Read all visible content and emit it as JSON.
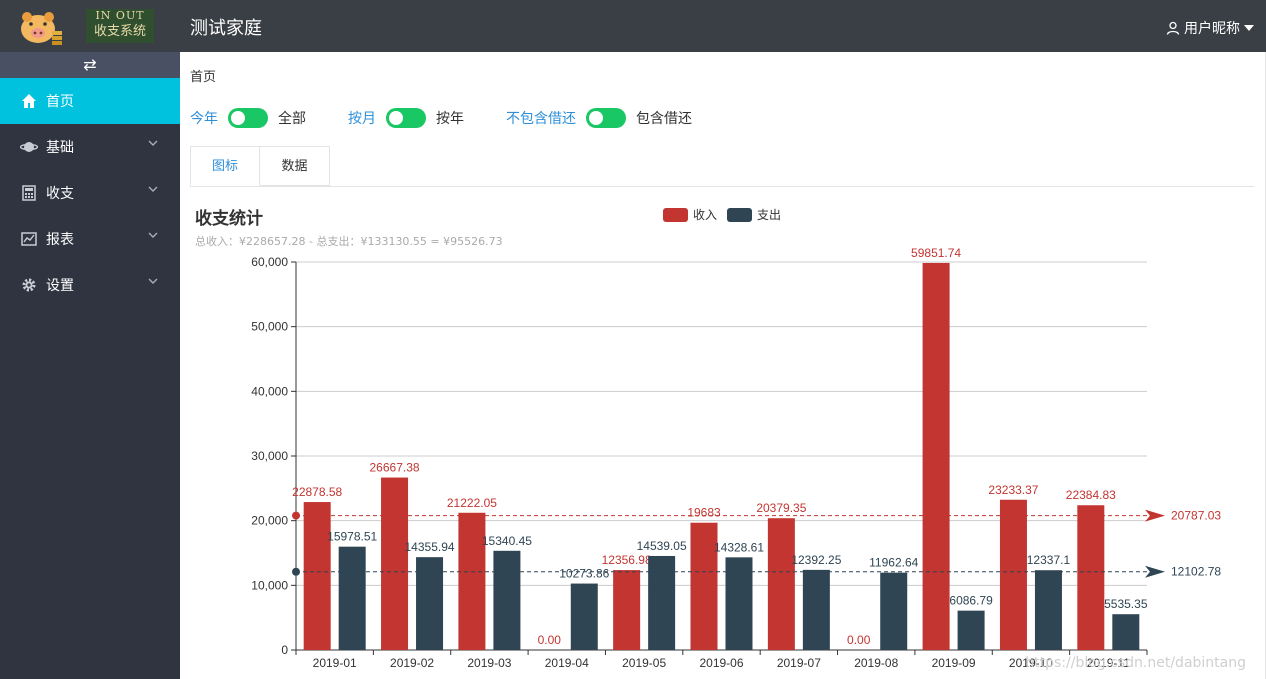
{
  "logo": {
    "line1": "IN OUT",
    "line2": "收支系统"
  },
  "sidebar": {
    "toggle_icon": "⇄",
    "items": [
      {
        "label": "首页",
        "icon": "home-icon"
      },
      {
        "label": "基础",
        "icon": "planet-icon"
      },
      {
        "label": "收支",
        "icon": "calculator-icon"
      },
      {
        "label": "报表",
        "icon": "report-icon"
      },
      {
        "label": "设置",
        "icon": "gear-icon"
      }
    ]
  },
  "header": {
    "title": "测试家庭",
    "user": "用户昵称"
  },
  "breadcrumb": "首页",
  "switches": [
    {
      "left": "今年",
      "right": "全部"
    },
    {
      "left": "按月",
      "right": "按年"
    },
    {
      "left": "不包含借还",
      "right": "包含借还"
    }
  ],
  "tabs": [
    "图标",
    "数据"
  ],
  "chart_data": {
    "type": "bar",
    "title": "收支统计",
    "subtitle": "总收入：¥228657.28 - 总支出：¥133130.55 = ¥95526.73",
    "categories": [
      "2019-01",
      "2019-02",
      "2019-03",
      "2019-04",
      "2019-05",
      "2019-06",
      "2019-07",
      "2019-08",
      "2019-09",
      "2019-10",
      "2019-11"
    ],
    "series": [
      {
        "name": "收入",
        "color": "#c23531",
        "values": [
          22878.58,
          26667.38,
          21222.05,
          0,
          12356.98,
          19683,
          20379.35,
          0,
          59851.74,
          23233.37,
          22384.83
        ],
        "labels": [
          "22878.58",
          "26667.38",
          "21222.05",
          "0.00",
          "12356.98",
          "19683",
          "20379.35",
          "0.00",
          "59851.74",
          "23233.37",
          "22384.83"
        ],
        "average": 20787.03,
        "average_label": "20787.03"
      },
      {
        "name": "支出",
        "color": "#2f4554",
        "values": [
          15978.51,
          14355.94,
          15340.45,
          10273.86,
          14539.05,
          14328.61,
          12392.25,
          11962.64,
          6086.79,
          12337.1,
          5535.35
        ],
        "labels": [
          "15978.51",
          "14355.94",
          "15340.45",
          "10273.86",
          "14539.05",
          "14328.61",
          "12392.25",
          "11962.64",
          "6086.79",
          "12337.1",
          "5535.35"
        ],
        "average": 12102.78,
        "average_label": "12102.78"
      }
    ],
    "y_ticks": [
      "0",
      "10,000",
      "20,000",
      "30,000",
      "40,000",
      "50,000",
      "60,000"
    ],
    "ylim": [
      0,
      60000
    ],
    "legend": [
      "收入",
      "支出"
    ]
  },
  "watermark": "https://blog.csdn.net/dabintang"
}
